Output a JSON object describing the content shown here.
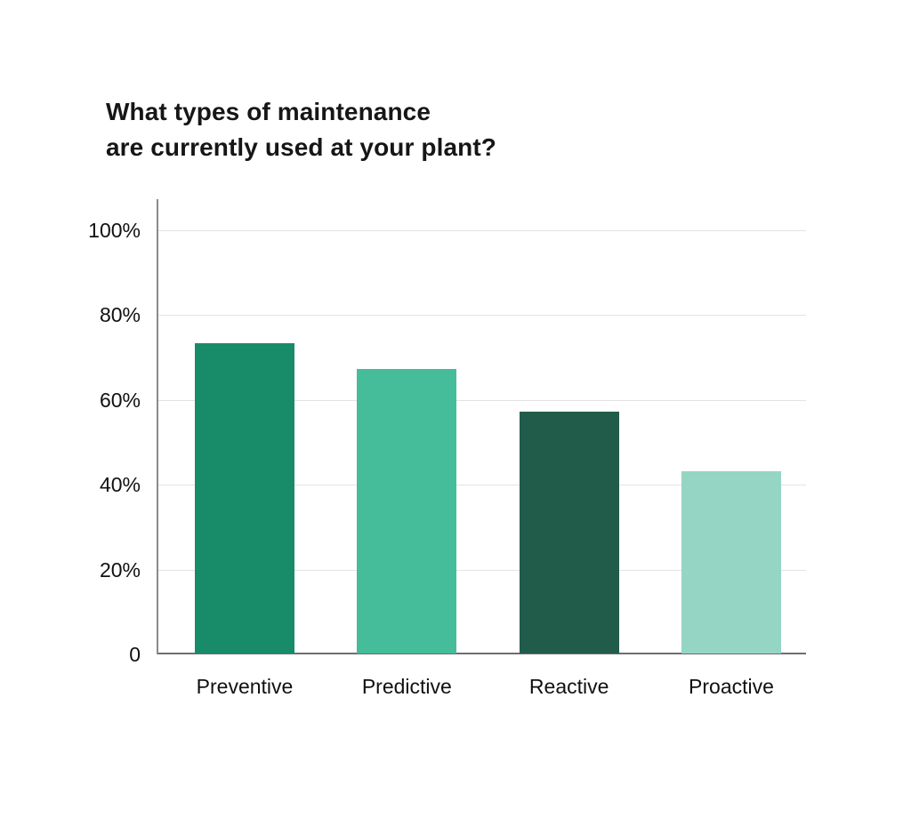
{
  "page": {
    "background": "#ffffff"
  },
  "chart_data": {
    "type": "bar",
    "title_lines": [
      "What types of maintenance",
      "are currently used at your plant?"
    ],
    "title": "What types of maintenance are currently used at your plant?",
    "categories": [
      "Preventive",
      "Predictive",
      "Reactive",
      "Proactive"
    ],
    "values": [
      73,
      67,
      57,
      43
    ],
    "unit": "%",
    "bar_colors": [
      "#188c69",
      "#45bc9a",
      "#215c4b",
      "#95d5c3"
    ],
    "yticks": [
      {
        "value": 100,
        "label": "100%"
      },
      {
        "value": 80,
        "label": "80%"
      },
      {
        "value": 60,
        "label": "60%"
      },
      {
        "value": 40,
        "label": "40%"
      },
      {
        "value": 20,
        "label": "20%"
      },
      {
        "value": 0,
        "label": "0"
      }
    ],
    "ylim": [
      0,
      100
    ],
    "xlabel": "",
    "ylabel": "",
    "grid": true,
    "legend": false
  },
  "colors": {
    "gridline": "#e3e3e3",
    "axis_line": "#8a8a8a",
    "baseline": "#6e6e6e",
    "title_text": "#161616",
    "label_text": "#111111"
  }
}
